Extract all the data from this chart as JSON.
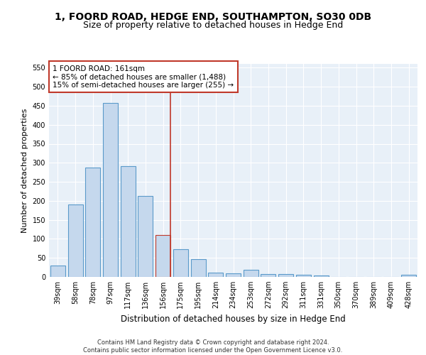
{
  "title1": "1, FOORD ROAD, HEDGE END, SOUTHAMPTON, SO30 0DB",
  "title2": "Size of property relative to detached houses in Hedge End",
  "xlabel": "Distribution of detached houses by size in Hedge End",
  "ylabel": "Number of detached properties",
  "categories": [
    "39sqm",
    "58sqm",
    "78sqm",
    "97sqm",
    "117sqm",
    "136sqm",
    "156sqm",
    "175sqm",
    "195sqm",
    "214sqm",
    "234sqm",
    "253sqm",
    "272sqm",
    "292sqm",
    "311sqm",
    "331sqm",
    "350sqm",
    "370sqm",
    "389sqm",
    "409sqm",
    "428sqm"
  ],
  "values": [
    30,
    190,
    288,
    458,
    292,
    213,
    110,
    73,
    47,
    12,
    10,
    18,
    8,
    7,
    5,
    4,
    0,
    0,
    0,
    0,
    5
  ],
  "highlight_index": 6,
  "bar_color": "#c5d8ed",
  "bar_edge_color": "#5a9aca",
  "highlight_bar_edge_color": "#c0392b",
  "vline_color": "#c0392b",
  "annotation_text": "1 FOORD ROAD: 161sqm\n← 85% of detached houses are smaller (1,488)\n15% of semi-detached houses are larger (255) →",
  "annotation_box_color": "#ffffff",
  "annotation_box_edge_color": "#c0392b",
  "ylim": [
    0,
    560
  ],
  "yticks": [
    0,
    50,
    100,
    150,
    200,
    250,
    300,
    350,
    400,
    450,
    500,
    550
  ],
  "background_color": "#e8f0f8",
  "footer_text": "Contains HM Land Registry data © Crown copyright and database right 2024.\nContains public sector information licensed under the Open Government Licence v3.0.",
  "title1_fontsize": 10,
  "title2_fontsize": 9,
  "xlabel_fontsize": 8.5,
  "ylabel_fontsize": 8,
  "tick_fontsize": 7,
  "annotation_fontsize": 7.5,
  "footer_fontsize": 6
}
